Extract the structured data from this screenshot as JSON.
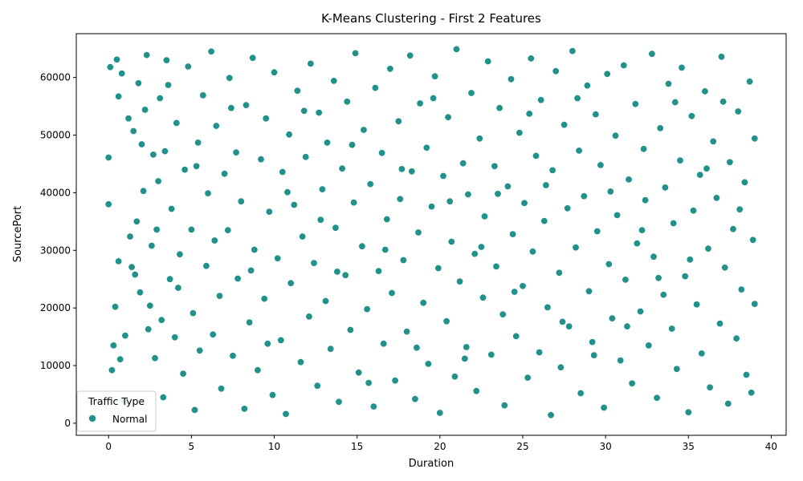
{
  "chart_data": {
    "type": "scatter",
    "title": "K-Means Clustering - First 2 Features",
    "xlabel": "Duration",
    "ylabel": "SourcePort",
    "xlim": [
      -1.95,
      40.9
    ],
    "ylim": [
      -2100,
      67600
    ],
    "xticks": [
      "0",
      "5",
      "10",
      "15",
      "20",
      "25",
      "30",
      "35",
      "40"
    ],
    "yticks": [
      "0",
      "10000",
      "20000",
      "30000",
      "40000",
      "50000",
      "60000"
    ],
    "grid": false,
    "legend": {
      "title": "Traffic Type",
      "placement": "lower-left"
    },
    "point_color": "#21918c",
    "series": [
      {
        "name": "Normal",
        "points": [
          [
            0,
            46100
          ],
          [
            0,
            38000
          ],
          [
            0.1,
            61800
          ],
          [
            0.2,
            9200
          ],
          [
            0.3,
            13500
          ],
          [
            0.4,
            20200
          ],
          [
            0.5,
            63100
          ],
          [
            0.6,
            56700
          ],
          [
            0.6,
            28100
          ],
          [
            0.7,
            11100
          ],
          [
            0.8,
            60700
          ],
          [
            1,
            15200
          ],
          [
            1.2,
            52900
          ],
          [
            1.4,
            27100
          ],
          [
            1.5,
            50700
          ],
          [
            1.6,
            25800
          ],
          [
            1.7,
            35000
          ],
          [
            1.8,
            59000
          ],
          [
            1.9,
            22700
          ],
          [
            2,
            48400
          ],
          [
            2.1,
            40300
          ],
          [
            2.2,
            54400
          ],
          [
            2.3,
            63900
          ],
          [
            2.5,
            20400
          ],
          [
            2.6,
            30800
          ],
          [
            2.7,
            46600
          ],
          [
            2.8,
            11300
          ],
          [
            2.9,
            33600
          ],
          [
            3,
            42000
          ],
          [
            3.1,
            56400
          ],
          [
            3.2,
            17900
          ],
          [
            3.3,
            4500
          ],
          [
            3.5,
            63000
          ],
          [
            3.6,
            58700
          ],
          [
            3.7,
            25000
          ],
          [
            3.8,
            37200
          ],
          [
            4,
            14900
          ],
          [
            4.1,
            52100
          ],
          [
            4.3,
            29300
          ],
          [
            4.5,
            8600
          ],
          [
            4.6,
            44000
          ],
          [
            4.8,
            61900
          ],
          [
            5,
            33600
          ],
          [
            5.1,
            19100
          ],
          [
            5.2,
            2300
          ],
          [
            5.4,
            48700
          ],
          [
            5.5,
            12600
          ],
          [
            5.7,
            56900
          ],
          [
            5.9,
            27300
          ],
          [
            6,
            39900
          ],
          [
            6.2,
            64500
          ],
          [
            6.3,
            15400
          ],
          [
            6.5,
            51600
          ],
          [
            6.7,
            22100
          ],
          [
            6.8,
            6000
          ],
          [
            7,
            43300
          ],
          [
            7.2,
            33500
          ],
          [
            7.3,
            59900
          ],
          [
            7.5,
            11700
          ],
          [
            7.7,
            47000
          ],
          [
            7.8,
            25100
          ],
          [
            8,
            38500
          ],
          [
            8.2,
            2500
          ],
          [
            8.3,
            55200
          ],
          [
            8.5,
            17500
          ],
          [
            8.7,
            63400
          ],
          [
            8.8,
            30100
          ],
          [
            9,
            9200
          ],
          [
            9.2,
            45800
          ],
          [
            9.4,
            21600
          ],
          [
            9.5,
            52900
          ],
          [
            9.7,
            36700
          ],
          [
            9.9,
            4900
          ],
          [
            10,
            60900
          ],
          [
            10.2,
            28600
          ],
          [
            10.4,
            14400
          ],
          [
            10.5,
            43600
          ],
          [
            10.7,
            1600
          ],
          [
            10.9,
            50100
          ],
          [
            11,
            24300
          ],
          [
            11.2,
            37900
          ],
          [
            11.4,
            57700
          ],
          [
            11.6,
            10600
          ],
          [
            11.7,
            32400
          ],
          [
            11.9,
            46200
          ],
          [
            12.1,
            18500
          ],
          [
            12.2,
            62400
          ],
          [
            12.4,
            27800
          ],
          [
            12.6,
            6500
          ],
          [
            12.7,
            53900
          ],
          [
            12.9,
            40600
          ],
          [
            13.1,
            21200
          ],
          [
            13.2,
            48700
          ],
          [
            13.4,
            12900
          ],
          [
            13.6,
            59400
          ],
          [
            13.7,
            33900
          ],
          [
            13.9,
            3700
          ],
          [
            14.1,
            44200
          ],
          [
            14.3,
            25700
          ],
          [
            14.4,
            55800
          ],
          [
            14.6,
            16200
          ],
          [
            14.8,
            38300
          ],
          [
            14.9,
            64200
          ],
          [
            15.1,
            8800
          ],
          [
            15.3,
            30700
          ],
          [
            15.4,
            50900
          ],
          [
            15.6,
            19800
          ],
          [
            15.8,
            41500
          ],
          [
            16,
            2900
          ],
          [
            16.1,
            58200
          ],
          [
            16.3,
            26400
          ],
          [
            16.5,
            46900
          ],
          [
            16.6,
            13800
          ],
          [
            16.8,
            35400
          ],
          [
            17,
            61500
          ],
          [
            17.1,
            22600
          ],
          [
            17.3,
            7400
          ],
          [
            17.5,
            52400
          ],
          [
            17.6,
            38900
          ],
          [
            17.8,
            28300
          ],
          [
            18,
            15900
          ],
          [
            18.2,
            63800
          ],
          [
            18.3,
            43700
          ],
          [
            18.5,
            4200
          ],
          [
            18.7,
            33100
          ],
          [
            18.8,
            55500
          ],
          [
            19,
            20900
          ],
          [
            19.2,
            47800
          ],
          [
            19.3,
            10300
          ],
          [
            19.5,
            37600
          ],
          [
            19.7,
            60200
          ],
          [
            19.9,
            26900
          ],
          [
            20,
            1800
          ],
          [
            20.2,
            42900
          ],
          [
            20.4,
            17700
          ],
          [
            20.5,
            53100
          ],
          [
            20.7,
            31500
          ],
          [
            20.9,
            8100
          ],
          [
            21,
            64900
          ],
          [
            21.2,
            24600
          ],
          [
            21.4,
            45100
          ],
          [
            21.6,
            13200
          ],
          [
            21.7,
            39700
          ],
          [
            21.9,
            57300
          ],
          [
            22.1,
            29400
          ],
          [
            22.2,
            5600
          ],
          [
            22.4,
            49400
          ],
          [
            22.6,
            21800
          ],
          [
            22.7,
            35900
          ],
          [
            22.9,
            62800
          ],
          [
            23.1,
            11900
          ],
          [
            23.3,
            44600
          ],
          [
            23.4,
            27200
          ],
          [
            23.6,
            54700
          ],
          [
            23.8,
            18900
          ],
          [
            23.9,
            3100
          ],
          [
            24.1,
            41100
          ],
          [
            24.3,
            59700
          ],
          [
            24.4,
            32800
          ],
          [
            24.6,
            15100
          ],
          [
            24.8,
            50400
          ],
          [
            25,
            23800
          ],
          [
            25.1,
            38200
          ],
          [
            25.3,
            7900
          ],
          [
            25.5,
            63300
          ],
          [
            25.6,
            29800
          ],
          [
            25.8,
            46400
          ],
          [
            26,
            12300
          ],
          [
            26.1,
            56100
          ],
          [
            26.3,
            35100
          ],
          [
            26.5,
            20100
          ],
          [
            26.7,
            1400
          ],
          [
            26.8,
            43900
          ],
          [
            27,
            61100
          ],
          [
            27.2,
            26100
          ],
          [
            27.3,
            9700
          ],
          [
            27.5,
            51800
          ],
          [
            27.7,
            37300
          ],
          [
            27.8,
            16800
          ],
          [
            28,
            64600
          ],
          [
            28.2,
            30500
          ],
          [
            28.4,
            47300
          ],
          [
            28.5,
            5200
          ],
          [
            28.7,
            39400
          ],
          [
            28.9,
            58600
          ],
          [
            29,
            22900
          ],
          [
            29.2,
            14100
          ],
          [
            29.4,
            53600
          ],
          [
            29.5,
            33300
          ],
          [
            29.7,
            44800
          ],
          [
            29.9,
            2700
          ],
          [
            30.1,
            60600
          ],
          [
            30.2,
            27600
          ],
          [
            30.4,
            18200
          ],
          [
            30.6,
            49900
          ],
          [
            30.7,
            36100
          ],
          [
            30.9,
            10900
          ],
          [
            31.1,
            62100
          ],
          [
            31.2,
            24900
          ],
          [
            31.4,
            42300
          ],
          [
            31.6,
            6900
          ],
          [
            31.8,
            55400
          ],
          [
            31.9,
            31200
          ],
          [
            32.1,
            19400
          ],
          [
            32.3,
            47600
          ],
          [
            32.4,
            38700
          ],
          [
            32.6,
            13500
          ],
          [
            32.8,
            64100
          ],
          [
            32.9,
            28900
          ],
          [
            33.1,
            4400
          ],
          [
            33.3,
            51200
          ],
          [
            33.5,
            22300
          ],
          [
            33.6,
            40900
          ],
          [
            33.8,
            58900
          ],
          [
            34,
            16400
          ],
          [
            34.1,
            34700
          ],
          [
            34.3,
            9400
          ],
          [
            34.5,
            45600
          ],
          [
            34.6,
            61700
          ],
          [
            34.8,
            25500
          ],
          [
            35,
            1900
          ],
          [
            35.2,
            53300
          ],
          [
            35.3,
            36900
          ],
          [
            35.5,
            20600
          ],
          [
            35.7,
            43100
          ],
          [
            35.8,
            12100
          ],
          [
            36,
            57600
          ],
          [
            36.2,
            30300
          ],
          [
            36.3,
            6200
          ],
          [
            36.5,
            48900
          ],
          [
            36.7,
            39100
          ],
          [
            36.9,
            17300
          ],
          [
            37,
            63600
          ],
          [
            37.2,
            27000
          ],
          [
            37.4,
            3400
          ],
          [
            37.5,
            45300
          ],
          [
            37.7,
            33700
          ],
          [
            37.9,
            14700
          ],
          [
            38,
            54100
          ],
          [
            38.2,
            23200
          ],
          [
            38.4,
            41800
          ],
          [
            38.5,
            8400
          ],
          [
            38.7,
            59300
          ],
          [
            38.9,
            31800
          ],
          [
            39,
            20700
          ],
          [
            39,
            49400
          ],
          [
            0.9,
            4000
          ],
          [
            1.3,
            32400
          ],
          [
            2.4,
            16300
          ],
          [
            3.4,
            47200
          ],
          [
            4.2,
            23500
          ],
          [
            5.3,
            44600
          ],
          [
            6.4,
            31700
          ],
          [
            7.4,
            54700
          ],
          [
            8.6,
            26500
          ],
          [
            9.6,
            13800
          ],
          [
            10.8,
            40100
          ],
          [
            11.8,
            54200
          ],
          [
            12.8,
            35300
          ],
          [
            13.8,
            26300
          ],
          [
            14.7,
            48300
          ],
          [
            15.7,
            7000
          ],
          [
            16.7,
            30100
          ],
          [
            17.7,
            44100
          ],
          [
            18.6,
            13100
          ],
          [
            19.6,
            56400
          ],
          [
            20.6,
            38500
          ],
          [
            21.5,
            11200
          ],
          [
            22.5,
            30600
          ],
          [
            23.5,
            39800
          ],
          [
            24.5,
            22800
          ],
          [
            25.4,
            53700
          ],
          [
            26.4,
            41300
          ],
          [
            27.4,
            17600
          ],
          [
            28.3,
            56400
          ],
          [
            29.3,
            11800
          ],
          [
            30.3,
            40200
          ],
          [
            31.3,
            16800
          ],
          [
            32.2,
            33500
          ],
          [
            33.2,
            25200
          ],
          [
            34.2,
            55700
          ],
          [
            35.1,
            28400
          ],
          [
            36.1,
            44200
          ],
          [
            37.1,
            55800
          ],
          [
            38.1,
            37100
          ],
          [
            38.8,
            5300
          ]
        ]
      }
    ]
  }
}
